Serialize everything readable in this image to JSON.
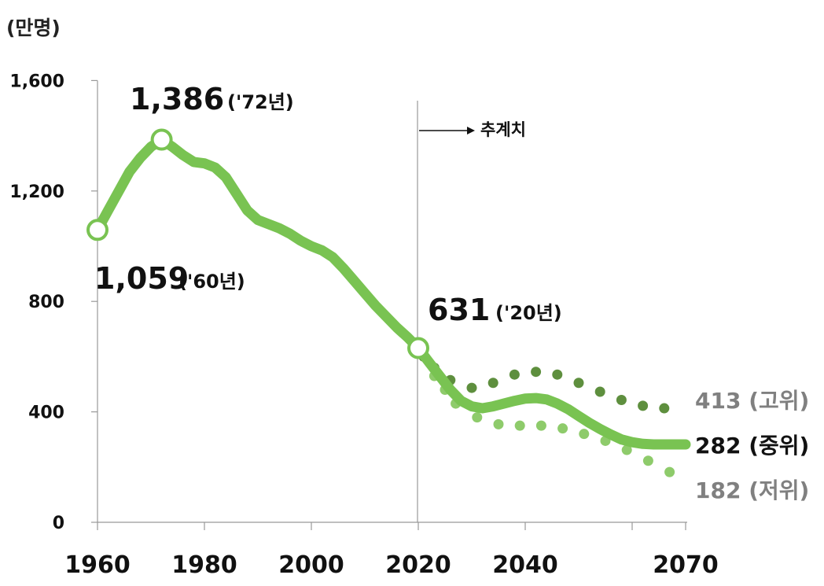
{
  "unit_label": "(만명)",
  "projection_label": "추계치",
  "chart_data": {
    "type": "line",
    "ylim": [
      0,
      1600
    ],
    "xlim": [
      1960,
      2070
    ],
    "y_ticks": [
      0,
      400,
      800,
      1200,
      1600
    ],
    "y_tick_labels": [
      "0",
      "400",
      "800",
      "1,200",
      "1,600"
    ],
    "x_ticks": [
      1960,
      1980,
      2000,
      2020,
      2040,
      2070
    ],
    "x_tick_labels": [
      "1960",
      "1980",
      "2000",
      "2020",
      "2040",
      "2070"
    ],
    "projection_start": 2020,
    "colors": {
      "medium": "#79c352",
      "high": "#5e8f3e",
      "low": "#8ecb6b",
      "gray_label": "#808080",
      "black_label": "#111111",
      "axis": "#999999"
    },
    "series": [
      {
        "name": "중위",
        "style": "solid",
        "points": [
          [
            1960,
            1059
          ],
          [
            1962,
            1130
          ],
          [
            1964,
            1200
          ],
          [
            1966,
            1270
          ],
          [
            1968,
            1320
          ],
          [
            1970,
            1360
          ],
          [
            1972,
            1386
          ],
          [
            1974,
            1360
          ],
          [
            1976,
            1330
          ],
          [
            1978,
            1305
          ],
          [
            1980,
            1300
          ],
          [
            1982,
            1285
          ],
          [
            1984,
            1250
          ],
          [
            1986,
            1190
          ],
          [
            1988,
            1130
          ],
          [
            1990,
            1095
          ],
          [
            1992,
            1080
          ],
          [
            1994,
            1065
          ],
          [
            1996,
            1045
          ],
          [
            1998,
            1020
          ],
          [
            2000,
            1000
          ],
          [
            2002,
            985
          ],
          [
            2004,
            960
          ],
          [
            2006,
            920
          ],
          [
            2008,
            875
          ],
          [
            2010,
            830
          ],
          [
            2012,
            785
          ],
          [
            2014,
            745
          ],
          [
            2016,
            705
          ],
          [
            2018,
            670
          ],
          [
            2020,
            631
          ],
          [
            2022,
            580
          ],
          [
            2024,
            530
          ],
          [
            2026,
            480
          ],
          [
            2028,
            440
          ],
          [
            2030,
            420
          ],
          [
            2032,
            413
          ],
          [
            2034,
            420
          ],
          [
            2036,
            430
          ],
          [
            2038,
            440
          ],
          [
            2040,
            448
          ],
          [
            2042,
            450
          ],
          [
            2044,
            445
          ],
          [
            2046,
            430
          ],
          [
            2048,
            410
          ],
          [
            2050,
            385
          ],
          [
            2052,
            360
          ],
          [
            2054,
            338
          ],
          [
            2056,
            318
          ],
          [
            2058,
            300
          ],
          [
            2060,
            290
          ],
          [
            2062,
            284
          ],
          [
            2064,
            282
          ],
          [
            2066,
            282
          ],
          [
            2068,
            282
          ],
          [
            2070,
            282
          ]
        ]
      },
      {
        "name": "고위",
        "style": "dotted",
        "points": [
          [
            2021,
            600
          ],
          [
            2023,
            560
          ],
          [
            2026,
            515
          ],
          [
            2030,
            487
          ],
          [
            2034,
            505
          ],
          [
            2038,
            535
          ],
          [
            2042,
            545
          ],
          [
            2046,
            535
          ],
          [
            2050,
            505
          ],
          [
            2054,
            473
          ],
          [
            2058,
            443
          ],
          [
            2062,
            422
          ],
          [
            2066,
            413
          ]
        ]
      },
      {
        "name": "저위",
        "style": "dotted",
        "points": [
          [
            2021,
            605
          ],
          [
            2023,
            530
          ],
          [
            2025,
            480
          ],
          [
            2027,
            430
          ],
          [
            2031,
            380
          ],
          [
            2035,
            355
          ],
          [
            2039,
            350
          ],
          [
            2043,
            350
          ],
          [
            2047,
            340
          ],
          [
            2051,
            320
          ],
          [
            2055,
            295
          ],
          [
            2059,
            262
          ],
          [
            2063,
            223
          ],
          [
            2067,
            182
          ]
        ]
      }
    ],
    "markers": [
      {
        "year": 1960,
        "value": 1059
      },
      {
        "year": 1972,
        "value": 1386
      },
      {
        "year": 2020,
        "value": 631
      }
    ],
    "annotations": [
      {
        "value_text": "1,059",
        "year_text": "('60년)"
      },
      {
        "value_text": "1,386",
        "year_text": "('72년)"
      },
      {
        "value_text": "631",
        "year_text": "('20년)"
      }
    ],
    "end_labels": [
      {
        "text": "413 (고위)"
      },
      {
        "text": "282 (중위)"
      },
      {
        "text": "182 (저위)"
      }
    ]
  }
}
